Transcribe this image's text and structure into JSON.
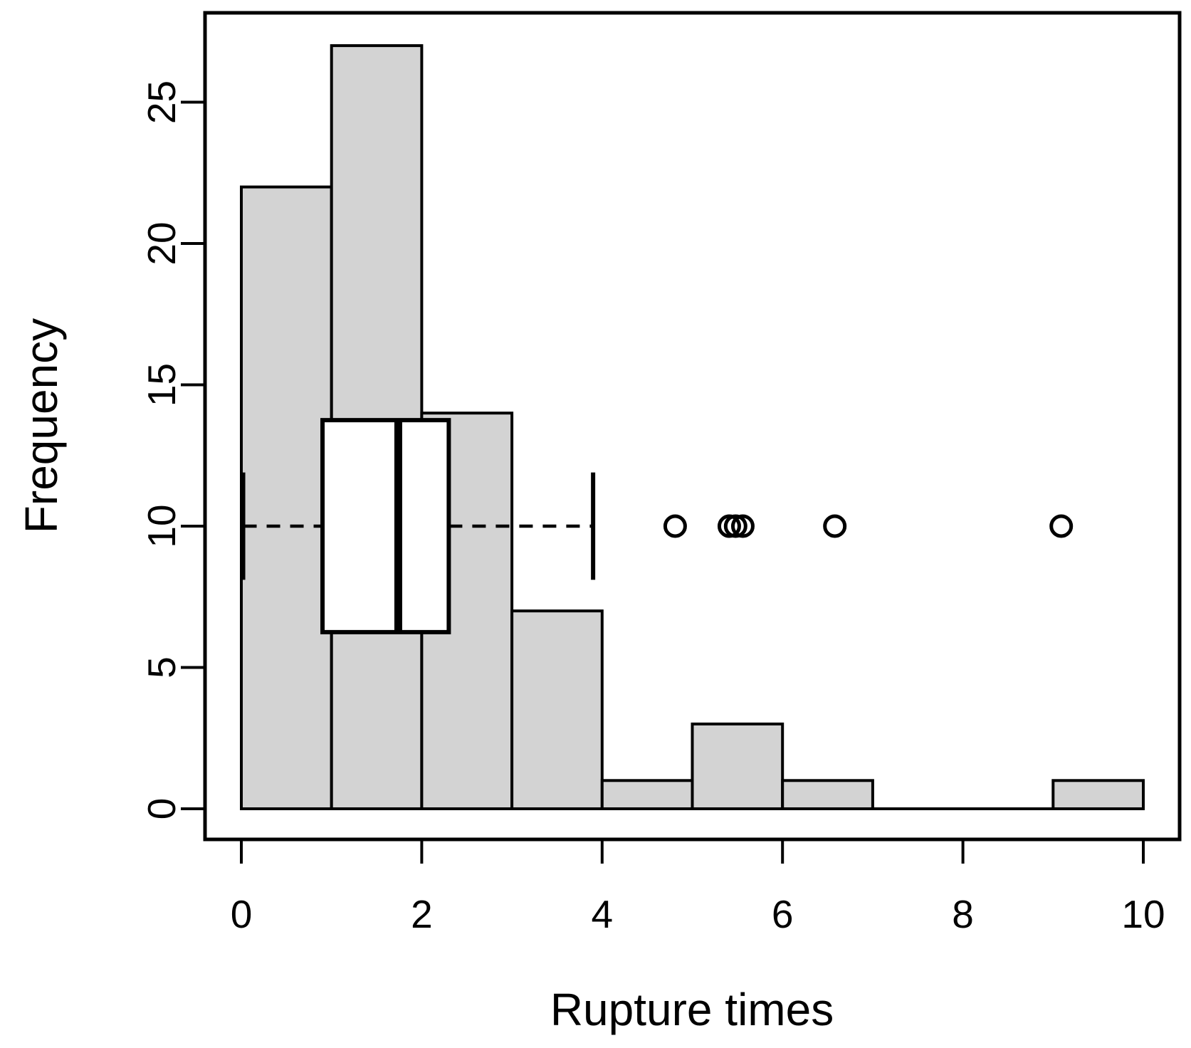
{
  "figure": {
    "background": "#ffffff"
  },
  "chart_data": {
    "type": "histogram+boxplot",
    "title": "",
    "xlabel": "Rupture times",
    "ylabel": "Frequency",
    "xlim": [
      0,
      10
    ],
    "ylim": [
      0,
      27
    ],
    "grid": false,
    "legend": "none",
    "x_ticks": [
      0,
      2,
      4,
      6,
      8,
      10
    ],
    "y_ticks": [
      0,
      5,
      10,
      15,
      20,
      25
    ],
    "histogram": {
      "bin_edges": [
        0,
        1,
        2,
        3,
        4,
        5,
        6,
        7,
        8,
        9,
        10
      ],
      "counts": [
        22,
        27,
        14,
        7,
        1,
        3,
        1,
        0,
        0,
        1
      ]
    },
    "boxplot": {
      "at": 10,
      "whisker_low": 0.02,
      "q1": 0.9,
      "median": 1.74,
      "q3": 2.3,
      "whisker_high": 3.9,
      "outliers": [
        4.81,
        5.41,
        5.48,
        5.56,
        6.58,
        9.09
      ],
      "box_half_height": 3.75,
      "cap_half_height": 1.9
    },
    "colors": {
      "bar_fill": "#d3d3d3",
      "box_fill": "#ffffff",
      "line": "#000000",
      "background": "#ffffff"
    }
  }
}
